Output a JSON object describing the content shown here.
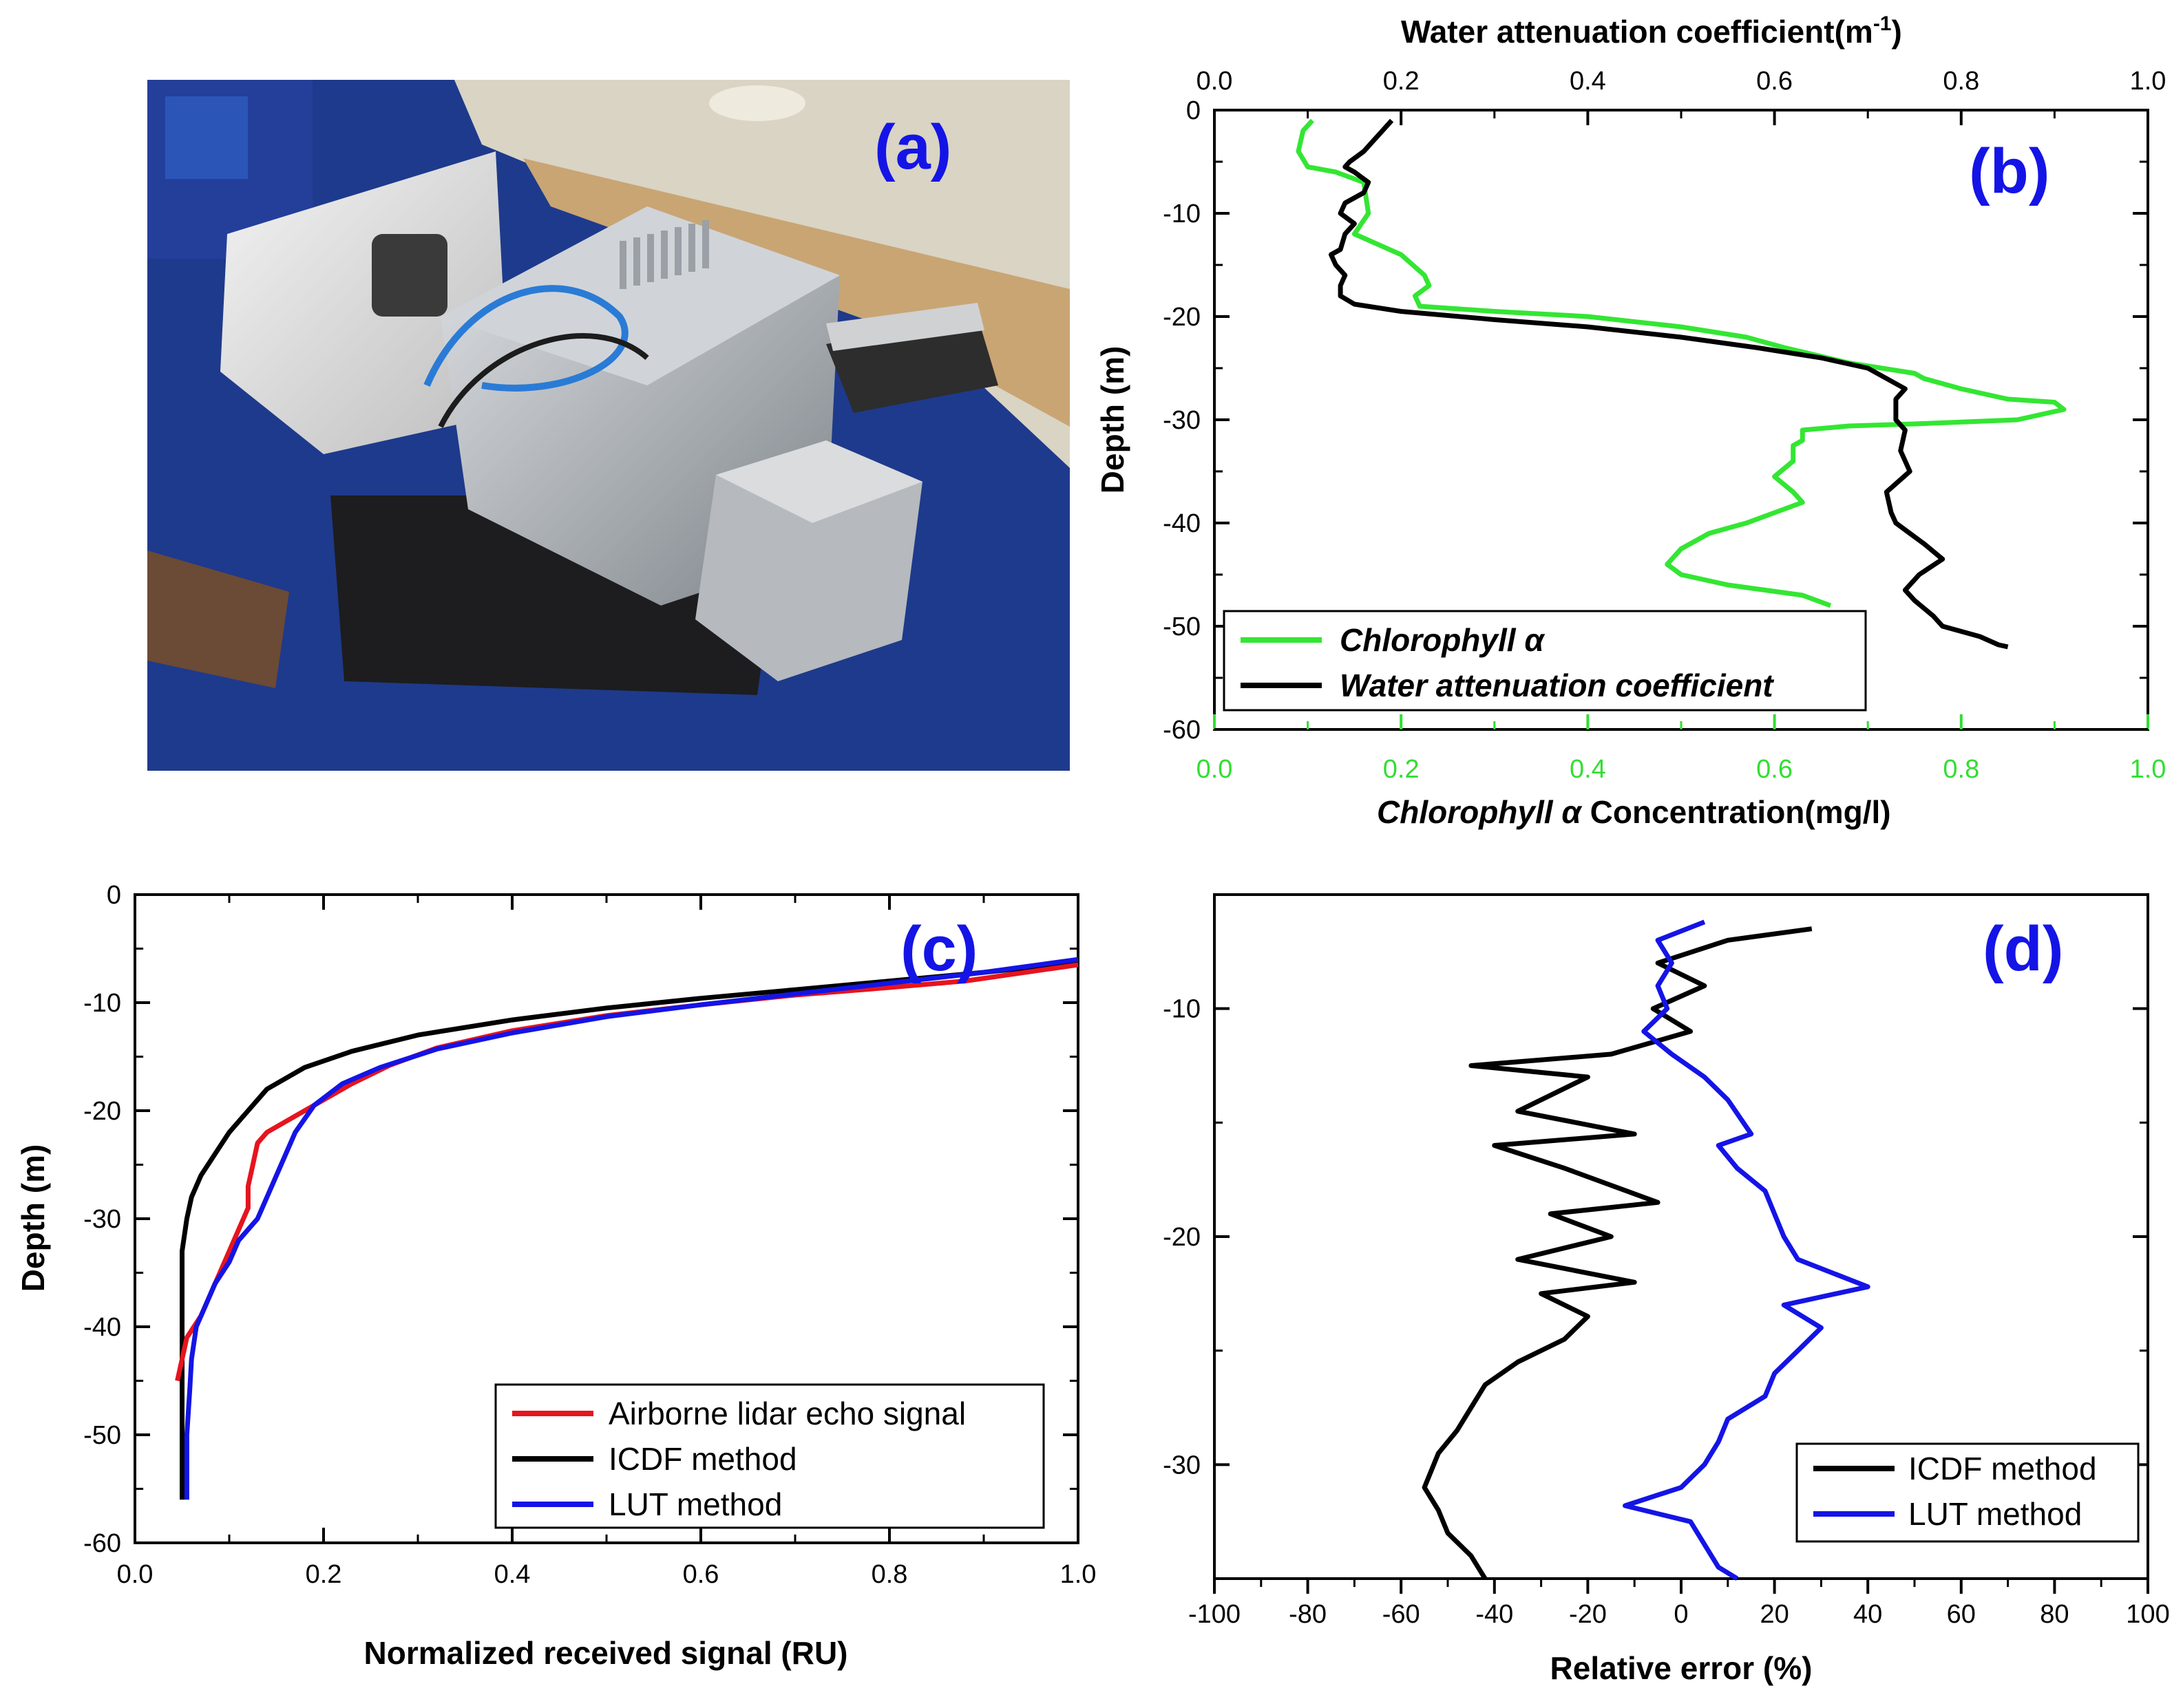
{
  "panels": {
    "a": {
      "label": "(a)",
      "photo_icon": "airborne-lidar-equipment-photo",
      "photo_colors": {
        "floor": "#1e3a8c",
        "wall": "#d9d4c4",
        "panel": "#c0a070",
        "housing": "#b8bcc0",
        "case": "#e9eaec"
      }
    },
    "b": {
      "label": "(b)",
      "top_axis_title": "Water attenuation coefficient(m",
      "top_axis_title_sup": "-1",
      "top_axis_title_end": ")",
      "y_title": "Depth (m)",
      "bottom_axis_title_italic": "Chlorophyll α",
      "bottom_axis_title_rest": " Concentration(mg/l)",
      "legend": [
        "Chlorophyll α",
        "Water attenuation coefficient"
      ]
    },
    "c": {
      "label": "(c)",
      "x_title": "Normalized received signal (RU)",
      "y_title": "Depth (m)",
      "legend": [
        "Airborne lidar echo signal",
        "ICDF method",
        "LUT method"
      ]
    },
    "d": {
      "label": "(d)",
      "x_title": "Relative error (%)",
      "legend": [
        "ICDF method",
        "LUT method"
      ]
    }
  },
  "chart_data": [
    {
      "panel": "b",
      "type": "line",
      "ylabel": "Depth (m)",
      "ylim": [
        -60,
        0
      ],
      "yticks": [
        0,
        -10,
        -20,
        -30,
        -40,
        -50,
        -60
      ],
      "grid": false,
      "legend_position": "bottom-left",
      "x_top": {
        "label": "Water attenuation coefficient(m-1)",
        "lim": [
          0,
          1.0
        ],
        "ticks": [
          "0.0",
          "0.2",
          "0.4",
          "0.6",
          "0.8",
          "1.0"
        ],
        "color": "#000000"
      },
      "x_bottom": {
        "label": "Chlorophyll α Concentration(mg/l)",
        "lim": [
          0,
          1.0
        ],
        "ticks": [
          "0.0",
          "0.2",
          "0.4",
          "0.6",
          "0.8",
          "1.0"
        ],
        "color": "#33dd33"
      },
      "series": [
        {
          "name": "Chlorophyll α",
          "color": "#33e633",
          "axis": "bottom",
          "points": [
            [
              0.105,
              -1
            ],
            [
              0.095,
              -2
            ],
            [
              0.09,
              -4
            ],
            [
              0.1,
              -5.5
            ],
            [
              0.13,
              -6
            ],
            [
              0.16,
              -7
            ],
            [
              0.165,
              -10
            ],
            [
              0.15,
              -12
            ],
            [
              0.2,
              -14
            ],
            [
              0.225,
              -16
            ],
            [
              0.23,
              -17
            ],
            [
              0.215,
              -18
            ],
            [
              0.22,
              -19
            ],
            [
              0.3,
              -19.5
            ],
            [
              0.4,
              -20
            ],
            [
              0.5,
              -21
            ],
            [
              0.57,
              -22
            ],
            [
              0.61,
              -23
            ],
            [
              0.68,
              -24.5
            ],
            [
              0.75,
              -25.5
            ],
            [
              0.76,
              -26
            ],
            [
              0.8,
              -27
            ],
            [
              0.85,
              -28
            ],
            [
              0.9,
              -28.3
            ],
            [
              0.91,
              -29
            ],
            [
              0.86,
              -30
            ],
            [
              0.75,
              -30.4
            ],
            [
              0.68,
              -30.6
            ],
            [
              0.63,
              -31
            ],
            [
              0.63,
              -32
            ],
            [
              0.62,
              -32.5
            ],
            [
              0.62,
              -34
            ],
            [
              0.6,
              -35.5
            ],
            [
              0.62,
              -37
            ],
            [
              0.63,
              -38
            ],
            [
              0.6,
              -39
            ],
            [
              0.57,
              -40
            ],
            [
              0.53,
              -41
            ],
            [
              0.5,
              -42.5
            ],
            [
              0.485,
              -44
            ],
            [
              0.5,
              -45
            ],
            [
              0.55,
              -46
            ],
            [
              0.63,
              -47
            ],
            [
              0.66,
              -48
            ]
          ]
        },
        {
          "name": "Water attenuation coefficient",
          "color": "#000000",
          "axis": "top",
          "points": [
            [
              0.19,
              -1
            ],
            [
              0.18,
              -2
            ],
            [
              0.17,
              -3
            ],
            [
              0.16,
              -4
            ],
            [
              0.145,
              -5
            ],
            [
              0.14,
              -5.5
            ],
            [
              0.15,
              -6
            ],
            [
              0.165,
              -7
            ],
            [
              0.16,
              -8
            ],
            [
              0.14,
              -9
            ],
            [
              0.135,
              -10
            ],
            [
              0.15,
              -11
            ],
            [
              0.14,
              -12
            ],
            [
              0.135,
              -13.5
            ],
            [
              0.125,
              -14
            ],
            [
              0.13,
              -15
            ],
            [
              0.14,
              -16
            ],
            [
              0.135,
              -17
            ],
            [
              0.135,
              -18
            ],
            [
              0.15,
              -18.8
            ],
            [
              0.2,
              -19.5
            ],
            [
              0.3,
              -20.3
            ],
            [
              0.4,
              -21
            ],
            [
              0.5,
              -22
            ],
            [
              0.58,
              -23
            ],
            [
              0.65,
              -24
            ],
            [
              0.7,
              -25
            ],
            [
              0.72,
              -26
            ],
            [
              0.74,
              -27
            ],
            [
              0.73,
              -28
            ],
            [
              0.73,
              -30
            ],
            [
              0.74,
              -31
            ],
            [
              0.735,
              -33
            ],
            [
              0.745,
              -35
            ],
            [
              0.72,
              -37
            ],
            [
              0.725,
              -39
            ],
            [
              0.73,
              -40
            ],
            [
              0.745,
              -41
            ],
            [
              0.76,
              -42
            ],
            [
              0.78,
              -43.5
            ],
            [
              0.755,
              -45
            ],
            [
              0.74,
              -46.5
            ],
            [
              0.75,
              -47.5
            ],
            [
              0.77,
              -49
            ],
            [
              0.78,
              -50
            ],
            [
              0.82,
              -51
            ],
            [
              0.84,
              -51.8
            ],
            [
              0.85,
              -52
            ]
          ]
        }
      ]
    },
    {
      "panel": "c",
      "type": "line",
      "xlabel": "Normalized received signal (RU)",
      "ylabel": "Depth (m)",
      "xlim": [
        0,
        1.0
      ],
      "ylim": [
        -60,
        0
      ],
      "xticks": [
        "0.0",
        "0.2",
        "0.4",
        "0.6",
        "0.8",
        "1.0"
      ],
      "yticks": [
        0,
        -10,
        -20,
        -30,
        -40,
        -50,
        -60
      ],
      "grid": false,
      "legend_position": "bottom-right",
      "series": [
        {
          "name": "Airborne lidar echo signal",
          "color": "#e6141e",
          "points": [
            [
              1.0,
              -6.5
            ],
            [
              0.88,
              -8
            ],
            [
              0.8,
              -8.6
            ],
            [
              0.7,
              -9.3
            ],
            [
              0.6,
              -10.2
            ],
            [
              0.5,
              -11.2
            ],
            [
              0.4,
              -12.6
            ],
            [
              0.32,
              -14.2
            ],
            [
              0.27,
              -15.8
            ],
            [
              0.23,
              -17.5
            ],
            [
              0.2,
              -19
            ],
            [
              0.17,
              -20.5
            ],
            [
              0.14,
              -22
            ],
            [
              0.13,
              -23
            ],
            [
              0.125,
              -25
            ],
            [
              0.12,
              -27
            ],
            [
              0.12,
              -29
            ],
            [
              0.11,
              -31
            ],
            [
              0.1,
              -33
            ],
            [
              0.09,
              -35
            ],
            [
              0.08,
              -37
            ],
            [
              0.07,
              -39
            ],
            [
              0.055,
              -41
            ],
            [
              0.05,
              -43
            ],
            [
              0.045,
              -45
            ]
          ]
        },
        {
          "name": "ICDF method",
          "color": "#000000",
          "points": [
            [
              1.0,
              -6.3
            ],
            [
              0.9,
              -7.2
            ],
            [
              0.8,
              -8
            ],
            [
              0.7,
              -8.8
            ],
            [
              0.6,
              -9.6
            ],
            [
              0.5,
              -10.5
            ],
            [
              0.4,
              -11.6
            ],
            [
              0.3,
              -13
            ],
            [
              0.23,
              -14.5
            ],
            [
              0.18,
              -16
            ],
            [
              0.14,
              -18
            ],
            [
              0.12,
              -20
            ],
            [
              0.1,
              -22
            ],
            [
              0.085,
              -24
            ],
            [
              0.07,
              -26
            ],
            [
              0.06,
              -28
            ],
            [
              0.055,
              -30
            ],
            [
              0.05,
              -33
            ],
            [
              0.05,
              -40
            ],
            [
              0.05,
              -50
            ],
            [
              0.05,
              -56
            ]
          ]
        },
        {
          "name": "LUT method",
          "color": "#1414e6",
          "points": [
            [
              1.0,
              -6
            ],
            [
              0.9,
              -7.2
            ],
            [
              0.8,
              -8.2
            ],
            [
              0.7,
              -9.2
            ],
            [
              0.6,
              -10.2
            ],
            [
              0.5,
              -11.3
            ],
            [
              0.4,
              -12.8
            ],
            [
              0.32,
              -14.3
            ],
            [
              0.26,
              -16
            ],
            [
              0.22,
              -17.5
            ],
            [
              0.19,
              -19.5
            ],
            [
              0.17,
              -22
            ],
            [
              0.16,
              -24
            ],
            [
              0.15,
              -26
            ],
            [
              0.14,
              -28
            ],
            [
              0.13,
              -30
            ],
            [
              0.11,
              -32
            ],
            [
              0.1,
              -34
            ],
            [
              0.085,
              -36
            ],
            [
              0.075,
              -38
            ],
            [
              0.065,
              -40
            ],
            [
              0.06,
              -43
            ],
            [
              0.058,
              -46
            ],
            [
              0.055,
              -50
            ],
            [
              0.055,
              -56
            ]
          ]
        }
      ]
    },
    {
      "panel": "d",
      "type": "line",
      "xlabel": "Relative error (%)",
      "xlim": [
        -100,
        100
      ],
      "ylim": [
        -35,
        -5
      ],
      "xticks": [
        -100,
        -80,
        -60,
        -40,
        -20,
        0,
        20,
        40,
        60,
        80,
        100
      ],
      "yticks": [
        -10,
        -20,
        -30
      ],
      "grid": false,
      "legend_position": "bottom-right",
      "series": [
        {
          "name": "ICDF method",
          "color": "#000000",
          "points": [
            [
              28,
              -6.5
            ],
            [
              10,
              -7
            ],
            [
              -5,
              -8
            ],
            [
              5,
              -9
            ],
            [
              -6,
              -10
            ],
            [
              2,
              -11
            ],
            [
              -15,
              -12
            ],
            [
              -45,
              -12.5
            ],
            [
              -20,
              -13
            ],
            [
              -35,
              -14.5
            ],
            [
              -10,
              -15.5
            ],
            [
              -40,
              -16
            ],
            [
              -25,
              -17
            ],
            [
              -5,
              -18.5
            ],
            [
              -28,
              -19
            ],
            [
              -15,
              -20
            ],
            [
              -35,
              -21
            ],
            [
              -10,
              -22
            ],
            [
              -30,
              -22.5
            ],
            [
              -20,
              -23.5
            ],
            [
              -25,
              -24.5
            ],
            [
              -35,
              -25.5
            ],
            [
              -42,
              -26.5
            ],
            [
              -45,
              -27.5
            ],
            [
              -48,
              -28.5
            ],
            [
              -52,
              -29.5
            ],
            [
              -55,
              -31
            ],
            [
              -52,
              -32
            ],
            [
              -50,
              -33
            ],
            [
              -45,
              -34
            ],
            [
              -42,
              -35
            ]
          ]
        },
        {
          "name": "LUT method",
          "color": "#1414e6",
          "points": [
            [
              5,
              -6.2
            ],
            [
              -5,
              -7
            ],
            [
              -2,
              -8
            ],
            [
              -5,
              -9
            ],
            [
              -3,
              -10
            ],
            [
              -8,
              -11
            ],
            [
              -2,
              -12
            ],
            [
              5,
              -13
            ],
            [
              10,
              -14
            ],
            [
              15,
              -15.5
            ],
            [
              8,
              -16
            ],
            [
              12,
              -17
            ],
            [
              18,
              -18
            ],
            [
              20,
              -19
            ],
            [
              22,
              -20
            ],
            [
              25,
              -21
            ],
            [
              40,
              -22.2
            ],
            [
              22,
              -23
            ],
            [
              30,
              -24
            ],
            [
              25,
              -25
            ],
            [
              20,
              -26
            ],
            [
              18,
              -27
            ],
            [
              10,
              -28
            ],
            [
              8,
              -29
            ],
            [
              5,
              -30
            ],
            [
              0,
              -31
            ],
            [
              -12,
              -31.8
            ],
            [
              2,
              -32.5
            ],
            [
              5,
              -33.5
            ],
            [
              8,
              -34.5
            ],
            [
              12,
              -35
            ]
          ]
        }
      ]
    }
  ]
}
